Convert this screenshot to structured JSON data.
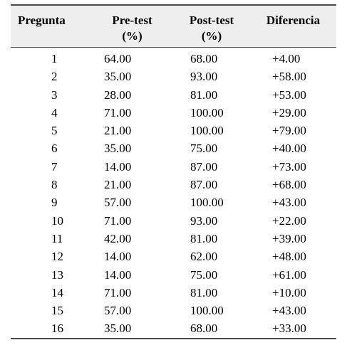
{
  "table": {
    "headers": {
      "pregunta": "Pregunta",
      "pretest_line1": "Pre-test",
      "pretest_line2": "(%)",
      "posttest_line1": "Post-test",
      "posttest_line2": "(%)",
      "diferencia": "Diferencia"
    },
    "rows": [
      {
        "pregunta": "1",
        "pretest": "64.00",
        "posttest": "68.00",
        "diferencia": "+4.00"
      },
      {
        "pregunta": "2",
        "pretest": "35.00",
        "posttest": "93.00",
        "diferencia": "+58.00"
      },
      {
        "pregunta": "3",
        "pretest": "28.00",
        "posttest": "81.00",
        "diferencia": "+53.00"
      },
      {
        "pregunta": "4",
        "pretest": "71.00",
        "posttest": "100.00",
        "diferencia": "+29.00"
      },
      {
        "pregunta": "5",
        "pretest": "21.00",
        "posttest": "100.00",
        "diferencia": "+79.00"
      },
      {
        "pregunta": "6",
        "pretest": "35.00",
        "posttest": "75.00",
        "diferencia": "+40.00"
      },
      {
        "pregunta": "7",
        "pretest": "14.00",
        "posttest": "87.00",
        "diferencia": "+73.00"
      },
      {
        "pregunta": "8",
        "pretest": "21.00",
        "posttest": "87.00",
        "diferencia": "+68.00"
      },
      {
        "pregunta": "9",
        "pretest": "57.00",
        "posttest": "100.00",
        "diferencia": "+43.00"
      },
      {
        "pregunta": "10",
        "pretest": "71.00",
        "posttest": "93.00",
        "diferencia": "+22.00"
      },
      {
        "pregunta": "11",
        "pretest": "42.00",
        "posttest": "81.00",
        "diferencia": "+39.00"
      },
      {
        "pregunta": "12",
        "pretest": "14.00",
        "posttest": "62.00",
        "diferencia": "+48.00"
      },
      {
        "pregunta": "13",
        "pretest": "14.00",
        "posttest": "75.00",
        "diferencia": "+61.00"
      },
      {
        "pregunta": "14",
        "pretest": "71.00",
        "posttest": "81.00",
        "diferencia": "+10.00"
      },
      {
        "pregunta": "15",
        "pretest": "57.00",
        "posttest": "100.00",
        "diferencia": "+43.00"
      },
      {
        "pregunta": "16",
        "pretest": "35.00",
        "posttest": "68.00",
        "diferencia": "+33.00"
      }
    ]
  }
}
